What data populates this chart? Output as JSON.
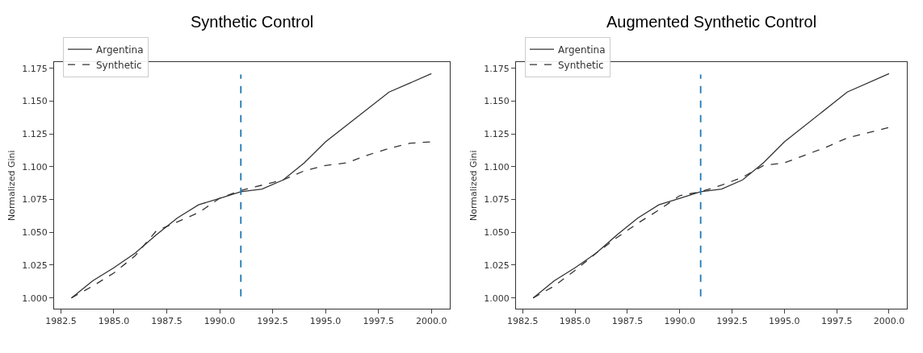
{
  "chart_data": [
    {
      "type": "line",
      "title": "Synthetic Control",
      "ylabel": "Normalized Gini",
      "legend": "top left",
      "grid": false,
      "xlim": [
        1982.18,
        2000.85
      ],
      "ylim": [
        0.9917,
        1.1797
      ],
      "xticks": [
        {
          "value": 1982.5,
          "label": "1982.5"
        },
        {
          "value": 1985,
          "label": "1985.0"
        },
        {
          "value": 1987.5,
          "label": "1987.5"
        },
        {
          "value": 1990,
          "label": "1990.0"
        },
        {
          "value": 1992.5,
          "label": "1992.5"
        },
        {
          "value": 1995,
          "label": "1995.0"
        },
        {
          "value": 1997.5,
          "label": "1997.5"
        },
        {
          "value": 2000,
          "label": "2000.0"
        }
      ],
      "yticks": [
        {
          "value": 1,
          "label": "1.000"
        },
        {
          "value": 1.025,
          "label": "1.025"
        },
        {
          "value": 1.05,
          "label": "1.050"
        },
        {
          "value": 1.075,
          "label": "1.075"
        },
        {
          "value": 1.1,
          "label": "1.100"
        },
        {
          "value": 1.125,
          "label": "1.125"
        },
        {
          "value": 1.15,
          "label": "1.150"
        },
        {
          "value": 1.175,
          "label": "1.175"
        }
      ],
      "series": [
        {
          "name": "Argentina",
          "color": "#333333",
          "line_style": "solid",
          "x": [
            1983,
            1984,
            1985,
            1986,
            1987,
            1988,
            1989,
            1990,
            1991,
            1992,
            1993,
            1994,
            1995,
            1998,
            2000
          ],
          "values": [
            1.0,
            1.013,
            1.023,
            1.034,
            1.048,
            1.061,
            1.071,
            1.076,
            1.081,
            1.083,
            1.09,
            1.103,
            1.119,
            1.157,
            1.171
          ]
        },
        {
          "name": "Synthetic",
          "color": "#333333",
          "line_style": "dashed",
          "x": [
            1983,
            1984,
            1985,
            1986,
            1987,
            1988,
            1989,
            1990,
            1991,
            1992,
            1993,
            1994,
            1995,
            1996,
            1997,
            1998,
            1999,
            2000
          ],
          "values": [
            1.0,
            1.009,
            1.019,
            1.032,
            1.051,
            1.058,
            1.065,
            1.076,
            1.082,
            1.086,
            1.09,
            1.097,
            1.101,
            1.103,
            1.109,
            1.114,
            1.118,
            1.119
          ]
        }
      ],
      "ref_lines": [
        {
          "axis": "x",
          "value": 1991,
          "color": "#1f77b4",
          "line_style": "dashed"
        }
      ]
    },
    {
      "type": "line",
      "title": "Augmented Synthetic Control",
      "ylabel": "Normalized Gini",
      "legend": "top left",
      "grid": false,
      "xlim": [
        1982.18,
        2000.85
      ],
      "ylim": [
        0.9917,
        1.1797
      ],
      "xticks": [
        {
          "value": 1982.5,
          "label": "1982.5"
        },
        {
          "value": 1985,
          "label": "1985.0"
        },
        {
          "value": 1987.5,
          "label": "1987.5"
        },
        {
          "value": 1990,
          "label": "1990.0"
        },
        {
          "value": 1992.5,
          "label": "1992.5"
        },
        {
          "value": 1995,
          "label": "1995.0"
        },
        {
          "value": 1997.5,
          "label": "1997.5"
        },
        {
          "value": 2000,
          "label": "2000.0"
        }
      ],
      "yticks": [
        {
          "value": 1,
          "label": "1.000"
        },
        {
          "value": 1.025,
          "label": "1.025"
        },
        {
          "value": 1.05,
          "label": "1.050"
        },
        {
          "value": 1.075,
          "label": "1.075"
        },
        {
          "value": 1.1,
          "label": "1.100"
        },
        {
          "value": 1.125,
          "label": "1.125"
        },
        {
          "value": 1.15,
          "label": "1.150"
        },
        {
          "value": 1.175,
          "label": "1.175"
        }
      ],
      "series": [
        {
          "name": "Argentina",
          "color": "#333333",
          "line_style": "solid",
          "x": [
            1983,
            1984,
            1985,
            1986,
            1987,
            1988,
            1989,
            1990,
            1991,
            1992,
            1993,
            1994,
            1995,
            1998,
            2000
          ],
          "values": [
            1.0,
            1.013,
            1.023,
            1.034,
            1.048,
            1.061,
            1.071,
            1.076,
            1.081,
            1.083,
            1.09,
            1.103,
            1.119,
            1.157,
            1.171
          ]
        },
        {
          "name": "Synthetic",
          "color": "#333333",
          "line_style": "dashed",
          "x": [
            1983,
            1984,
            1985,
            1986,
            1987,
            1988,
            1989,
            1990,
            1991,
            1992,
            1993,
            1994,
            1995,
            1996,
            1997,
            1998,
            1999,
            2000
          ],
          "values": [
            1.0,
            1.009,
            1.021,
            1.034,
            1.046,
            1.057,
            1.067,
            1.078,
            1.081,
            1.086,
            1.092,
            1.101,
            1.103,
            1.109,
            1.115,
            1.122,
            1.126,
            1.13
          ]
        }
      ],
      "ref_lines": [
        {
          "axis": "x",
          "value": 1991,
          "color": "#1f77b4",
          "line_style": "dashed"
        }
      ]
    }
  ]
}
